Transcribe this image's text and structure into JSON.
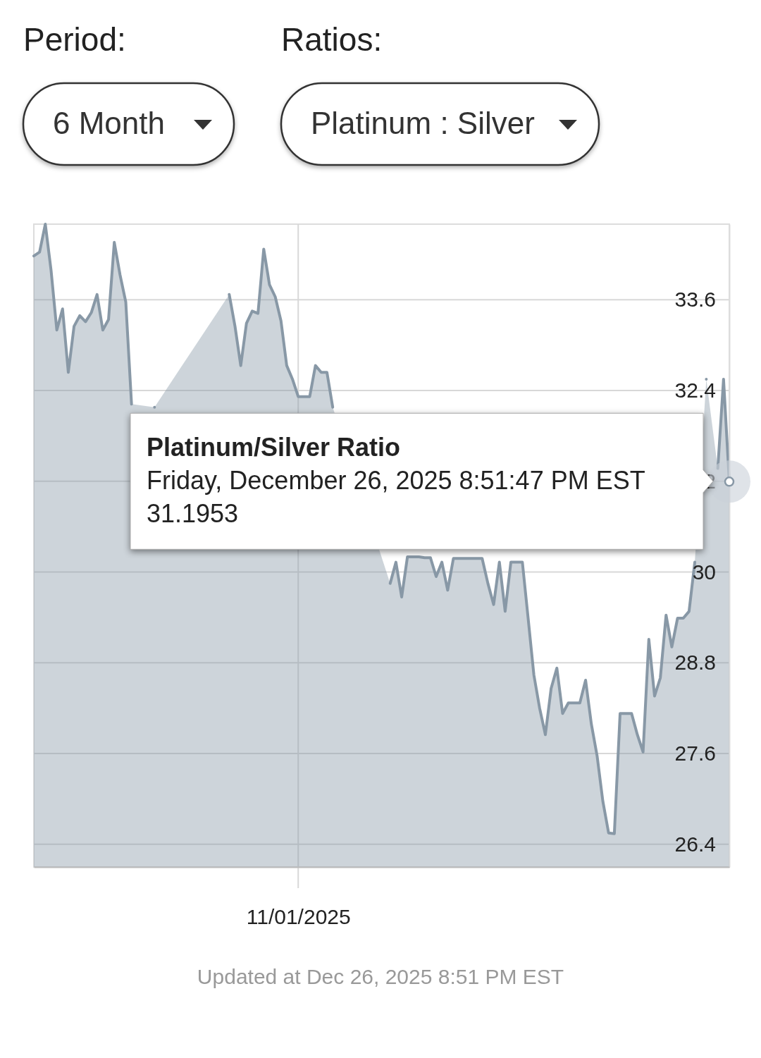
{
  "chart_data": {
    "type": "area",
    "categories": [
      null,
      null,
      null,
      null,
      null,
      null,
      null,
      null,
      null,
      null,
      null,
      null,
      null,
      null,
      null,
      null,
      null,
      null,
      null,
      null,
      null,
      null,
      null,
      null,
      null,
      null,
      null,
      null,
      null,
      null,
      null,
      null,
      null,
      null,
      null,
      null,
      null,
      null,
      null,
      null,
      null,
      null,
      null,
      null,
      null,
      null,
      "11/01/2025",
      null,
      null,
      null,
      null,
      null,
      null,
      null,
      null,
      null,
      null,
      null,
      null,
      null,
      null,
      null,
      null,
      null,
      null,
      null,
      null,
      null,
      null,
      null,
      null,
      null,
      null,
      null,
      null,
      null,
      null,
      null,
      null,
      null,
      null,
      null,
      null,
      null,
      null,
      null,
      null,
      null,
      null,
      null,
      null,
      null,
      null,
      null,
      null,
      null,
      null,
      null,
      null,
      null,
      null,
      null,
      null,
      null,
      null,
      null,
      null,
      null,
      null,
      null,
      null,
      null,
      null,
      null,
      null,
      null,
      null,
      null,
      null,
      null,
      null,
      null
    ],
    "series": [
      {
        "color": "#8898a6",
        "values": [
          34.18,
          34.23,
          34.6,
          33.99,
          33.2,
          33.48,
          32.64,
          33.25,
          33.39,
          33.31,
          33.43,
          33.67,
          33.2,
          33.34,
          34.36,
          33.93,
          33.57,
          32.22,
          null,
          null,
          null,
          32.18,
          null,
          null,
          null,
          null,
          null,
          null,
          null,
          null,
          null,
          null,
          null,
          null,
          33.67,
          33.25,
          32.73,
          33.29,
          33.45,
          33.42,
          34.27,
          33.8,
          33.64,
          33.32,
          32.73,
          32.55,
          32.32,
          32.32,
          32.32,
          32.73,
          32.64,
          32.64,
          32.18,
          null,
          null,
          null,
          null,
          null,
          null,
          null,
          null,
          null,
          29.85,
          30.13,
          29.67,
          30.2,
          30.2,
          30.2,
          30.19,
          30.19,
          29.94,
          30.13,
          29.76,
          30.18,
          30.18,
          30.18,
          30.18,
          30.18,
          30.18,
          29.85,
          29.57,
          30.13,
          29.48,
          30.13,
          30.13,
          30.13,
          29.39,
          28.64,
          28.2,
          27.85,
          28.46,
          28.73,
          28.13,
          28.27,
          28.27,
          28.27,
          28.57,
          27.99,
          27.57,
          26.97,
          26.55,
          26.54,
          28.13,
          28.13,
          28.13,
          27.85,
          27.62,
          29.11,
          28.36,
          28.6,
          29.43,
          29.01,
          29.39,
          29.39,
          29.48,
          30.13,
          null,
          32.55,
          null,
          31.37,
          32.55,
          31.1953
        ]
      }
    ],
    "ylim": [
      26.1,
      34.6
    ],
    "yticks": [
      26.4,
      27.6,
      28.8,
      30,
      31.2,
      32.4,
      33.6
    ],
    "grid": true,
    "annotations": [
      "Period:",
      "6 Month",
      "Ratios:",
      "Platinum : Silver",
      "Platinum/Silver Ratio\nFriday, December 26, 2025 8:51:47 PM EST\n31.1953",
      "Updated at Dec 26, 2025 8:51 PM EST"
    ]
  }
}
